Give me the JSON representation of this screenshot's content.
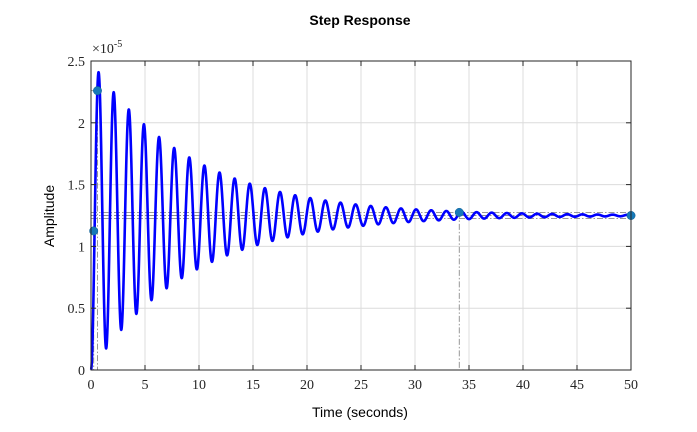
{
  "chart_data": {
    "type": "line",
    "title": "Step Response",
    "xlabel": "Time (seconds)",
    "ylabel": "Amplitude",
    "y_exponent_label": "×10",
    "y_exponent_power": "-5",
    "xlim": [
      0,
      50
    ],
    "ylim": [
      0,
      2.5
    ],
    "x_ticks": [
      "0",
      "5",
      "10",
      "15",
      "20",
      "25",
      "30",
      "35",
      "40",
      "45",
      "50"
    ],
    "y_ticks": [
      "0",
      "0.5",
      "1",
      "1.5",
      "2",
      "2.5"
    ],
    "grid": true,
    "series": [
      {
        "color": "#0000ff",
        "final_value": 1.25,
        "peak_value": 2.26,
        "oscillation_period": 1.4,
        "settling_time": 34.1
      }
    ],
    "markers": [
      {
        "x": 0.25,
        "y": 1.125
      },
      {
        "x": 0.6,
        "y": 2.26
      },
      {
        "x": 34.1,
        "y": 1.275
      },
      {
        "x": 50,
        "y": 1.25
      }
    ],
    "colors": {
      "marker": "#1679b8",
      "line": "#0000ff"
    }
  }
}
